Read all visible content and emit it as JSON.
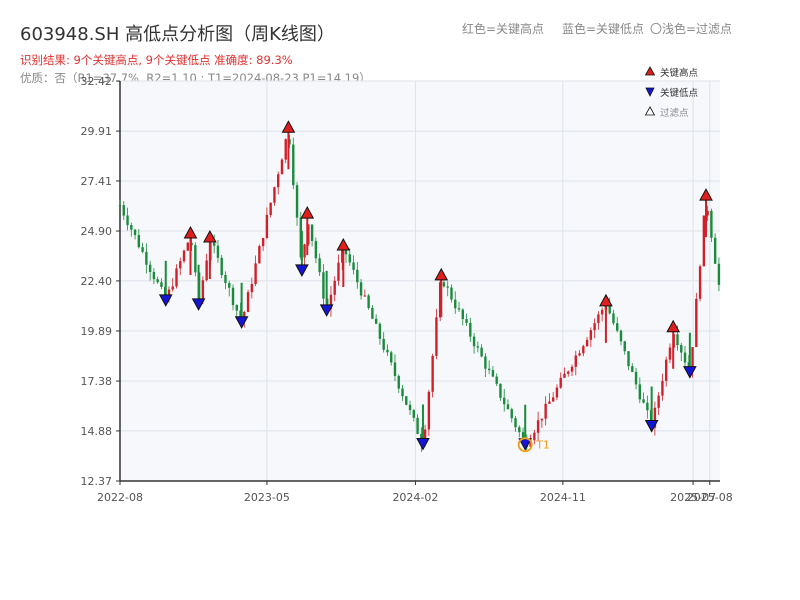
{
  "header": {
    "title": "603948.SH 高低点分析图（周K线图）",
    "legend_note_red": "红色=关键高点",
    "legend_note_blue": "蓝色=关键低点",
    "legend_note_light": "〇浅色=过滤点",
    "stats_line": "识别结果: 9个关键高点, 9个关键低点  准确度: 89.3%",
    "quality_line": "优质：否（R1=37.7%, R2=1.10 ; T1=2024-08-23 P1=14.19）"
  },
  "colors": {
    "up": "#d0202a",
    "down": "#1a8a3c",
    "high_marker": "#e01e1e",
    "low_marker": "#1515d6",
    "t1_marker": "#f0a020",
    "plot_bg": "#f6f8fb",
    "title": "#333333",
    "stats": "#e03030",
    "quality": "#888888"
  },
  "chart_data": {
    "type": "candlestick",
    "x_type": "date",
    "x_range": [
      "2022-08-01",
      "2025-08-20"
    ],
    "x_ticks": [
      "2022-08",
      "2023-05",
      "2024-02",
      "2024-11",
      "2025-07",
      "2025-08"
    ],
    "ylim": [
      12.37,
      32.42
    ],
    "y_ticks": [
      "32.42",
      "29.91",
      "27.41",
      "24.90",
      "22.40",
      "19.89",
      "17.38",
      "14.88",
      "12.37"
    ],
    "grid": true,
    "legend": [
      {
        "label": "关键高点",
        "marker": "triangle-up",
        "color": "#e01e1e"
      },
      {
        "label": "关键低点",
        "marker": "triangle-down",
        "color": "#1515d6"
      },
      {
        "label": "过滤点",
        "marker": "triangle-up-hollow",
        "color": "#ffffff"
      }
    ],
    "legend_position": "top-right",
    "key_highs": [
      {
        "date": "2022-12-10",
        "price": 24.7
      },
      {
        "date": "2023-01-15",
        "price": 24.5
      },
      {
        "date": "2023-06-10",
        "price": 30.0
      },
      {
        "date": "2023-07-15",
        "price": 25.7
      },
      {
        "date": "2023-09-20",
        "price": 24.1
      },
      {
        "date": "2024-03-20",
        "price": 22.6
      },
      {
        "date": "2025-01-20",
        "price": 21.3
      },
      {
        "date": "2025-05-25",
        "price": 20.0
      },
      {
        "date": "2025-07-25",
        "price": 26.6
      }
    ],
    "key_lows": [
      {
        "date": "2022-10-25",
        "price": 21.4
      },
      {
        "date": "2022-12-25",
        "price": 21.2
      },
      {
        "date": "2023-03-15",
        "price": 20.3
      },
      {
        "date": "2023-07-05",
        "price": 22.9
      },
      {
        "date": "2023-08-20",
        "price": 20.9
      },
      {
        "date": "2024-02-15",
        "price": 14.2
      },
      {
        "date": "2024-08-23",
        "price": 14.19
      },
      {
        "date": "2025-04-15",
        "price": 15.1
      },
      {
        "date": "2025-06-25",
        "price": 17.8
      }
    ],
    "t1": {
      "label": "T1",
      "date": "2024-08-23",
      "price": 14.19
    }
  }
}
